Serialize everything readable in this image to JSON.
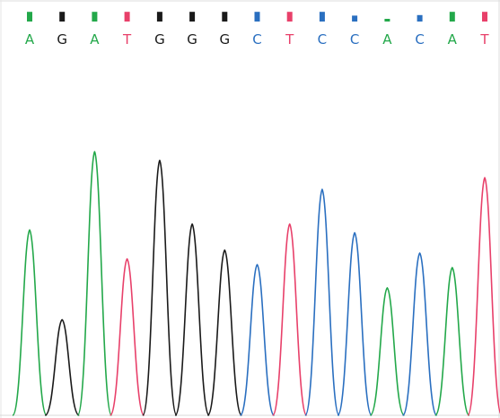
{
  "chart_data": {
    "type": "line",
    "title": "",
    "xlabel": "",
    "ylabel": "",
    "x_label_note": "",
    "ylim": [
      0,
      1
    ],
    "base_colors": {
      "A": "#23a84a",
      "G": "#1a1a1a",
      "T": "#e8406a",
      "C": "#2a6fc0"
    },
    "bases": [
      {
        "base": "A",
        "peak": 0.64,
        "quality": 0.9
      },
      {
        "base": "G",
        "peak": 0.33,
        "quality": 0.9
      },
      {
        "base": "A",
        "peak": 0.91,
        "quality": 0.9
      },
      {
        "base": "T",
        "peak": 0.54,
        "quality": 0.9
      },
      {
        "base": "G",
        "peak": 0.88,
        "quality": 0.9
      },
      {
        "base": "G",
        "peak": 0.66,
        "quality": 0.9
      },
      {
        "base": "G",
        "peak": 0.57,
        "quality": 0.9
      },
      {
        "base": "C",
        "peak": 0.52,
        "quality": 0.9
      },
      {
        "base": "T",
        "peak": 0.66,
        "quality": 0.9
      },
      {
        "base": "C",
        "peak": 0.78,
        "quality": 0.9
      },
      {
        "base": "C",
        "peak": 0.63,
        "quality": 0.55
      },
      {
        "base": "A",
        "peak": 0.44,
        "quality": 0.25
      },
      {
        "base": "C",
        "peak": 0.56,
        "quality": 0.6
      },
      {
        "base": "A",
        "peak": 0.51,
        "quality": 0.9
      },
      {
        "base": "T",
        "peak": 0.82,
        "quality": 0.9
      }
    ]
  }
}
